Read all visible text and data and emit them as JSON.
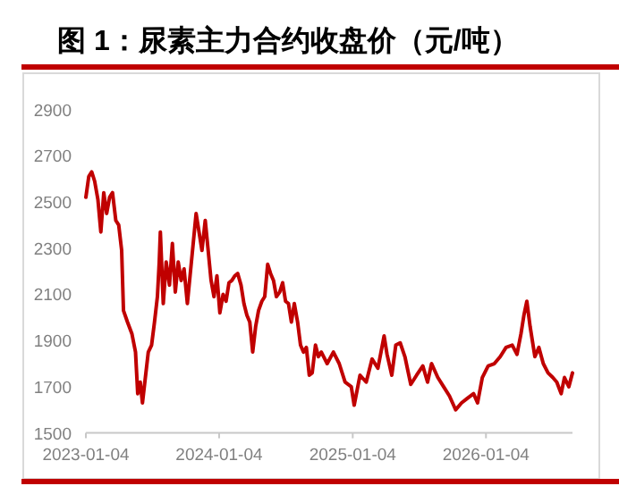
{
  "chart_data": {
    "type": "line",
    "title": "图 1：尿素主力合约收盘价（元/吨）",
    "x": [
      "2023-01-04",
      "2023-01-12",
      "2023-01-20",
      "2023-01-28",
      "2023-02-06",
      "2023-02-14",
      "2023-02-22",
      "2023-03-02",
      "2023-03-10",
      "2023-03-18",
      "2023-03-27",
      "2023-04-04",
      "2023-04-12",
      "2023-04-17",
      "2023-04-28",
      "2023-05-10",
      "2023-05-20",
      "2023-05-26",
      "2023-06-02",
      "2023-06-08",
      "2023-06-16",
      "2023-06-24",
      "2023-07-03",
      "2023-07-11",
      "2023-07-19",
      "2023-07-24",
      "2023-07-27",
      "2023-08-04",
      "2023-08-12",
      "2023-08-21",
      "2023-08-29",
      "2023-09-06",
      "2023-09-14",
      "2023-09-22",
      "2023-09-30",
      "2023-10-09",
      "2023-10-17",
      "2023-10-25",
      "2023-11-02",
      "2023-11-10",
      "2023-11-18",
      "2023-11-27",
      "2023-12-05",
      "2023-12-13",
      "2023-12-21",
      "2023-12-29",
      "2024-01-06",
      "2024-01-15",
      "2024-01-23",
      "2024-01-31",
      "2024-02-08",
      "2024-02-16",
      "2024-02-24",
      "2024-03-04",
      "2024-03-12",
      "2024-03-20",
      "2024-03-28",
      "2024-04-05",
      "2024-04-13",
      "2024-04-21",
      "2024-04-30",
      "2024-05-08",
      "2024-05-16",
      "2024-05-24",
      "2024-06-01",
      "2024-06-09",
      "2024-06-18",
      "2024-06-26",
      "2024-07-04",
      "2024-07-12",
      "2024-07-20",
      "2024-07-28",
      "2024-08-06",
      "2024-08-14",
      "2024-08-22",
      "2024-08-30",
      "2024-09-07",
      "2024-09-15",
      "2024-09-24",
      "2024-10-02",
      "2024-10-10",
      "2024-10-26",
      "2024-11-12",
      "2024-11-28",
      "2024-12-14",
      "2024-12-31",
      "2025-01-08",
      "2025-01-24",
      "2025-02-10",
      "2025-02-26",
      "2025-03-14",
      "2025-03-31",
      "2025-04-08",
      "2025-04-21",
      "2025-05-02",
      "2025-05-14",
      "2025-05-27",
      "2025-06-12",
      "2025-06-28",
      "2025-07-15",
      "2025-07-28",
      "2025-08-08",
      "2025-08-25",
      "2025-09-10",
      "2025-09-26",
      "2025-10-13",
      "2025-10-29",
      "2025-11-14",
      "2025-12-01",
      "2025-12-12",
      "2025-12-25",
      "2026-01-10",
      "2026-01-27",
      "2026-02-12",
      "2026-02-28",
      "2026-03-17",
      "2026-03-30",
      "2026-04-10",
      "2026-04-18",
      "2026-04-26",
      "2026-05-05",
      "2026-05-18",
      "2026-05-29",
      "2026-06-10",
      "2026-06-23",
      "2026-07-06",
      "2026-07-17",
      "2026-07-29",
      "2026-08-07",
      "2026-08-19",
      "2026-08-29"
    ],
    "series": [
      {
        "color": "#c00000",
        "values": [
          2520,
          2610,
          2630,
          2590,
          2510,
          2370,
          2540,
          2450,
          2520,
          2540,
          2420,
          2400,
          2290,
          2030,
          1980,
          1930,
          1850,
          1670,
          1720,
          1630,
          1740,
          1850,
          1880,
          1980,
          2090,
          2240,
          2370,
          2060,
          2240,
          2140,
          2320,
          2110,
          2240,
          2160,
          2210,
          2060,
          2190,
          2320,
          2450,
          2370,
          2290,
          2420,
          2290,
          2160,
          2090,
          2180,
          2020,
          2100,
          2070,
          2150,
          2160,
          2180,
          2190,
          2140,
          2060,
          2010,
          1980,
          1850,
          1960,
          2030,
          2070,
          2090,
          2230,
          2190,
          2160,
          2090,
          2110,
          2150,
          2070,
          2060,
          1980,
          2060,
          1980,
          1880,
          1850,
          1870,
          1750,
          1760,
          1880,
          1830,
          1850,
          1800,
          1850,
          1800,
          1720,
          1700,
          1620,
          1750,
          1720,
          1820,
          1780,
          1920,
          1840,
          1750,
          1880,
          1890,
          1830,
          1710,
          1750,
          1790,
          1720,
          1800,
          1740,
          1700,
          1660,
          1600,
          1630,
          1650,
          1670,
          1630,
          1740,
          1790,
          1800,
          1830,
          1870,
          1880,
          1840,
          1930,
          2010,
          2070,
          1960,
          1830,
          1870,
          1800,
          1760,
          1740,
          1720,
          1670,
          1740,
          1700,
          1760
        ]
      }
    ],
    "xlim": [
      "2023-01-04",
      "2026-08-29"
    ],
    "xticks": [
      "2023-01-04",
      "2024-01-04",
      "2025-01-04",
      "2026-01-04"
    ],
    "ylim": [
      1500,
      2900
    ],
    "yticks": [
      1500,
      1700,
      1900,
      2100,
      2300,
      2500,
      2700,
      2900
    ],
    "grid": false
  }
}
